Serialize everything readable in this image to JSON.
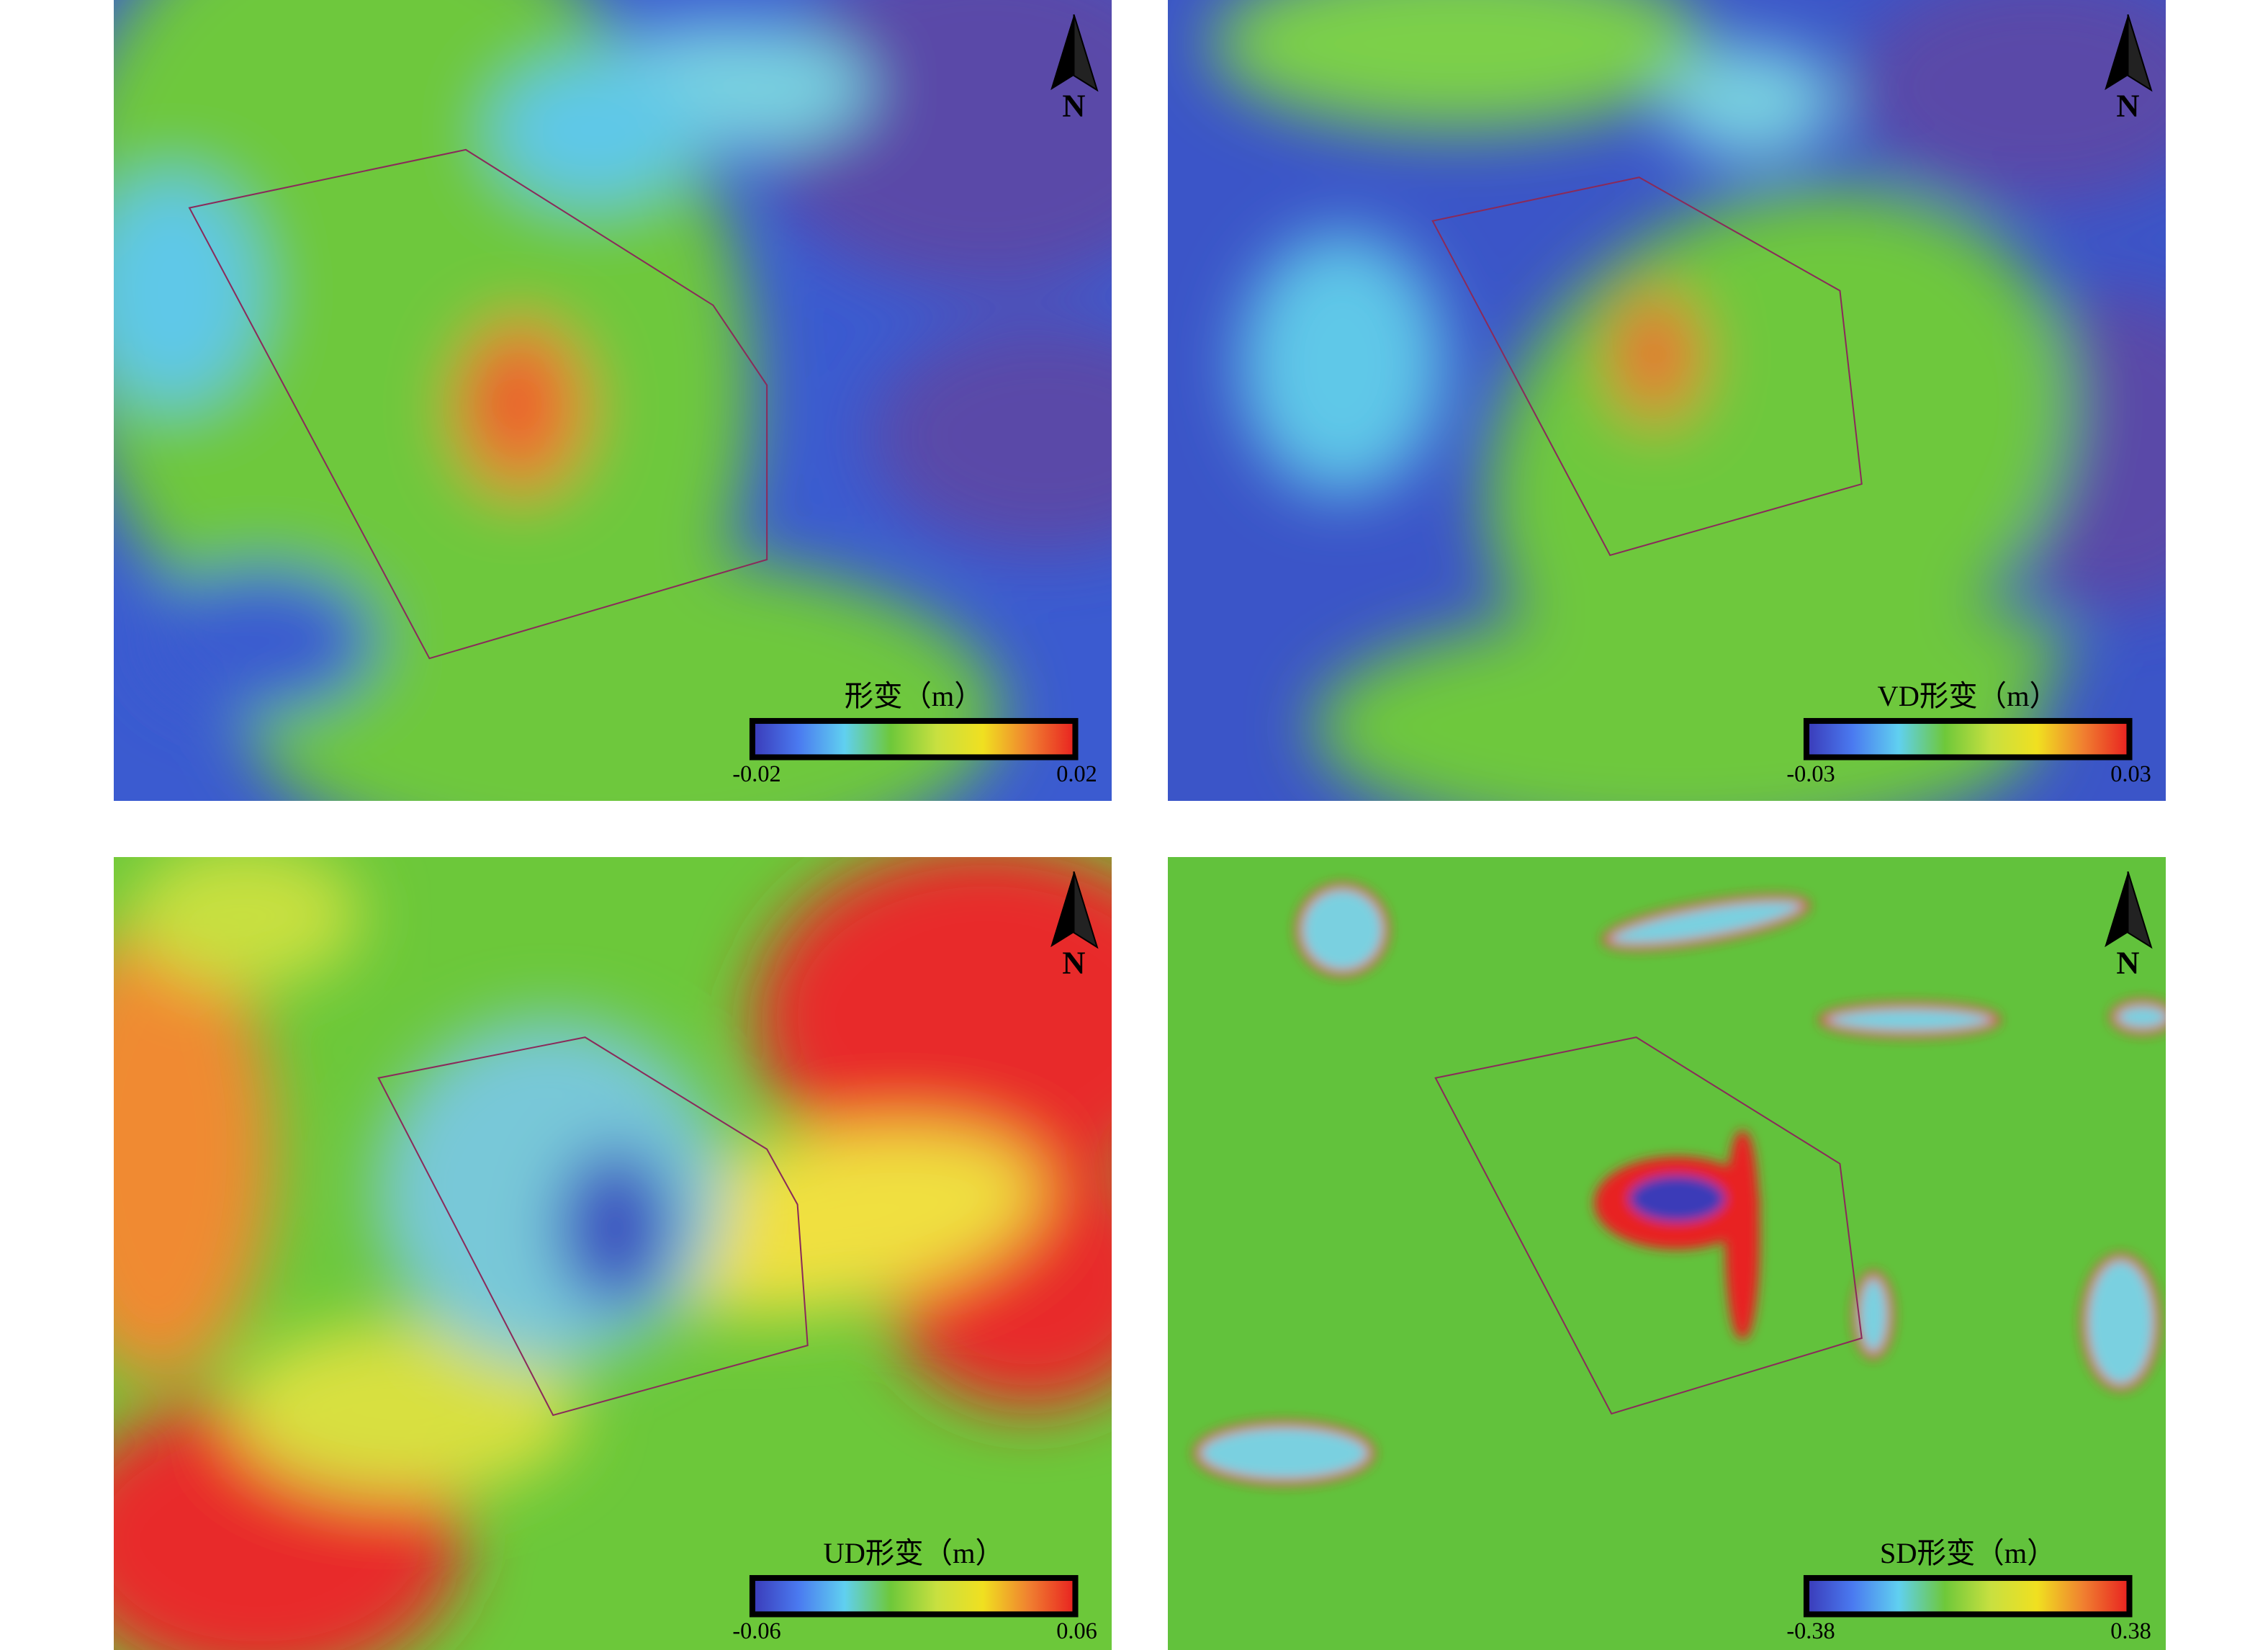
{
  "panels": [
    {
      "north": "N",
      "legend_title": "形变（m）",
      "min_label": "-0.02",
      "max_label": "0.02"
    },
    {
      "north": "N",
      "legend_title": "VD形变（m）",
      "min_label": "-0.03",
      "max_label": "0.03"
    },
    {
      "north": "N",
      "legend_title": "UD形变（m）",
      "min_label": "-0.06",
      "max_label": "0.06"
    },
    {
      "north": "N",
      "legend_title": "SD形变（m）",
      "min_label": "-0.38",
      "max_label": "0.38"
    }
  ]
}
